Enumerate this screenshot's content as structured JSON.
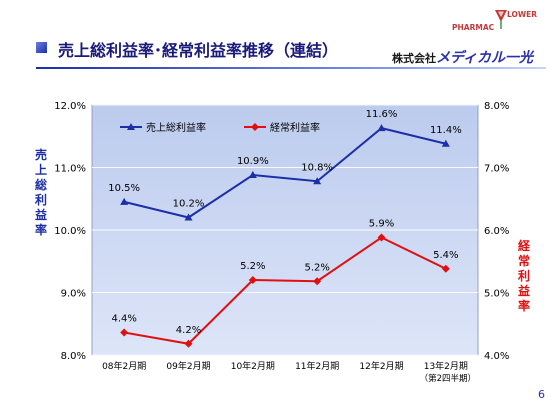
{
  "slide": {
    "title": "売上総利益率･経常利益率推移（連結）",
    "company_prefix": "株式会社",
    "company_brand": "メディカル一光",
    "logo_left": "PHARMAC",
    "logo_right": "LOWER",
    "page_number": "6"
  },
  "colors": {
    "title": "#1a1a7a",
    "plot_bg": "#c9d6f2",
    "series_gross": "#1c2fa8",
    "series_ordinary": "#e01010"
  },
  "chart_data": {
    "type": "line",
    "categories": [
      "08年2月期",
      "09年2月期",
      "10年2月期",
      "11年2月期",
      "12年2月期",
      "13年2月期"
    ],
    "category_sublabels": [
      "",
      "",
      "",
      "",
      "",
      "（第2四半期）"
    ],
    "ylabel_left": "売上総利益率",
    "ylabel_right": "経常利益率",
    "ylim_left": [
      8.0,
      12.0
    ],
    "ylim_right": [
      4.0,
      8.0
    ],
    "yticks_left": [
      "12.0%",
      "11.0%",
      "10.0%",
      "9.0%",
      "8.0%"
    ],
    "yticks_right": [
      "8.0%",
      "7.0%",
      "6.0%",
      "5.0%",
      "4.0%"
    ],
    "grid": "horizontal",
    "legend_position": "top-left",
    "series": [
      {
        "name": "売上総利益率",
        "axis": "left",
        "values": [
          10.45,
          10.2,
          10.88,
          10.78,
          11.63,
          11.38
        ],
        "labels": [
          "10.5%",
          "10.2%",
          "10.9%",
          "10.8%",
          "11.6%",
          "11.4%"
        ]
      },
      {
        "name": "経常利益率",
        "axis": "right",
        "values": [
          4.36,
          4.18,
          5.2,
          5.18,
          5.88,
          5.38
        ],
        "labels": [
          "4.4%",
          "4.2%",
          "5.2%",
          "5.2%",
          "5.9%",
          "5.4%"
        ]
      }
    ]
  }
}
